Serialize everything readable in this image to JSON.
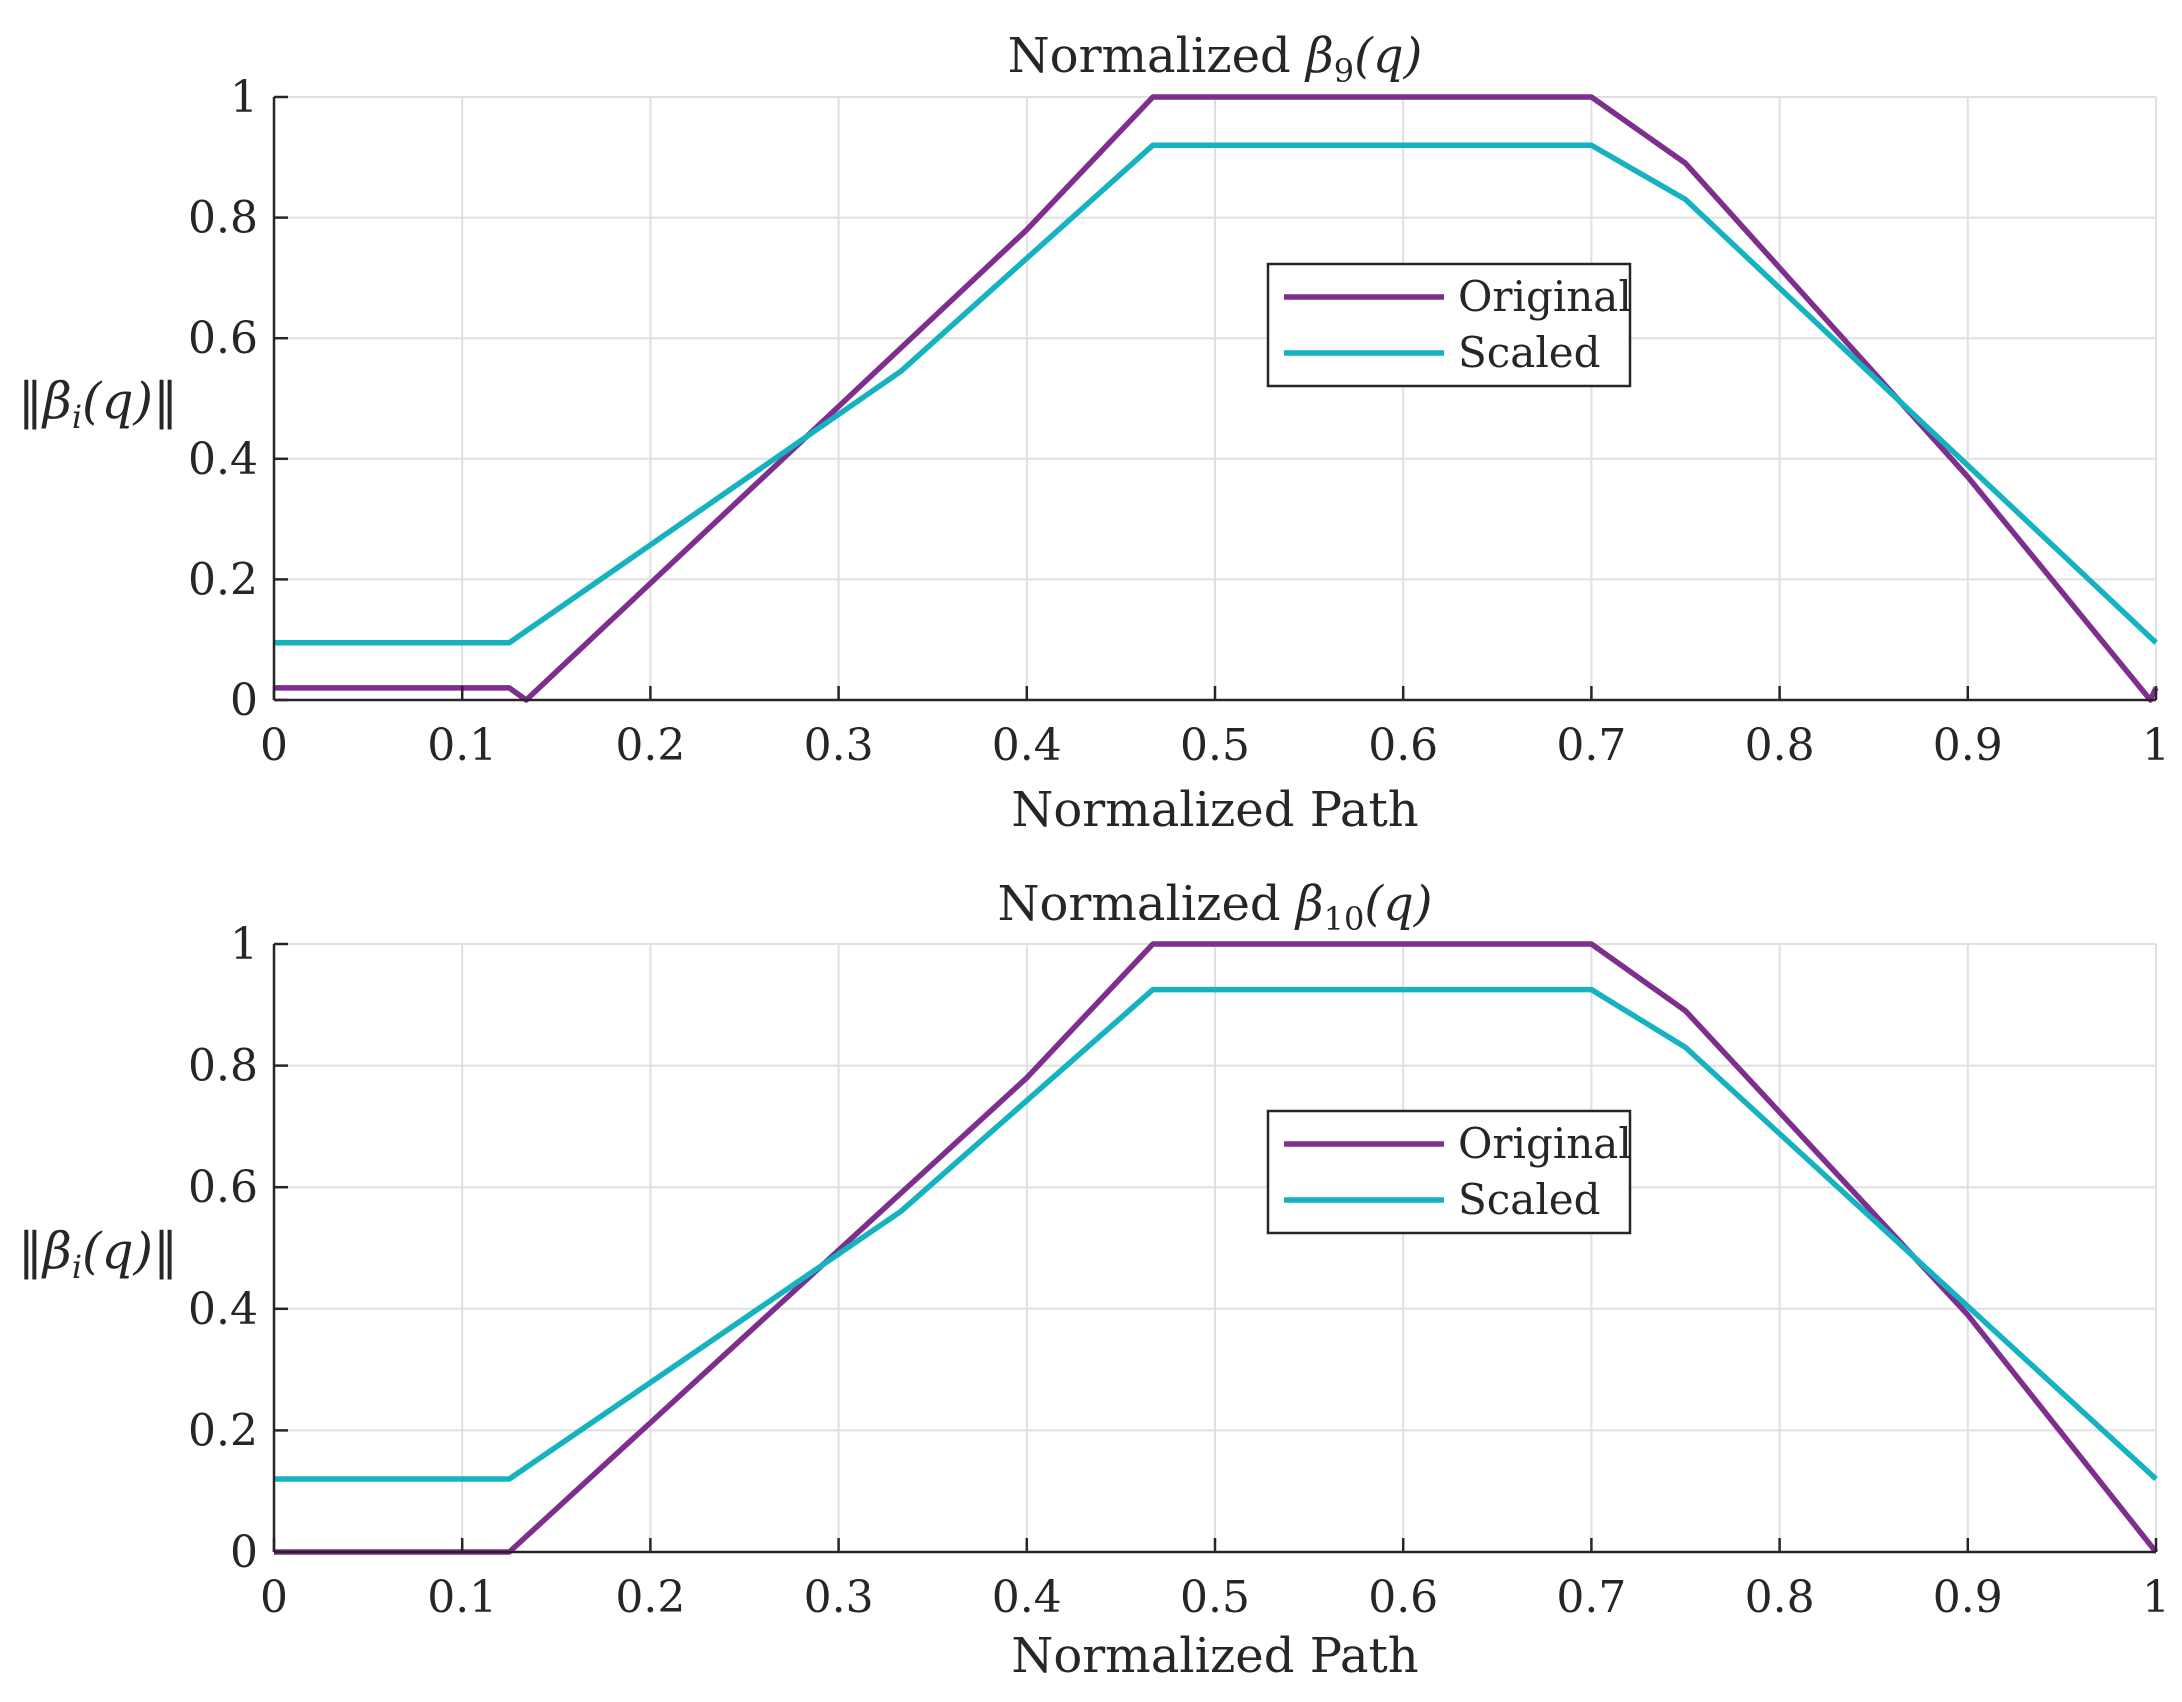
{
  "chart_data": [
    {
      "type": "line",
      "title": "Normalized β9(q)",
      "title_base": "Normalized ",
      "title_symbol": "β",
      "title_sub": "9",
      "title_arg": "(q)",
      "xlabel": "Normalized Path",
      "ylabel": "‖βi(q)‖",
      "ylabel_pre": "‖β",
      "ylabel_sub": "i",
      "ylabel_post": "(q)‖",
      "xlim": [
        0,
        1
      ],
      "ylim": [
        0,
        1
      ],
      "xticks": [
        "0",
        "0.1",
        "0.2",
        "0.3",
        "0.4",
        "0.5",
        "0.6",
        "0.7",
        "0.8",
        "0.9",
        "1"
      ],
      "yticks": [
        "0",
        "0.2",
        "0.4",
        "0.6",
        "0.8",
        "1"
      ],
      "grid": true,
      "legend_position": "upper-middle",
      "series": [
        {
          "name": "Original",
          "color": "#7e2f8e",
          "x": [
            0,
            0.125,
            0.134,
            0.4,
            0.467,
            0.7,
            0.75,
            0.9,
            0.997,
            1
          ],
          "y": [
            0.02,
            0.02,
            0.0,
            0.78,
            1.0,
            1.0,
            0.89,
            0.37,
            0.0,
            0.02
          ]
        },
        {
          "name": "Scaled",
          "color": "#15b2c0",
          "x": [
            0,
            0.125,
            0.333,
            0.467,
            0.7,
            0.75,
            1
          ],
          "y": [
            0.095,
            0.095,
            0.545,
            0.92,
            0.92,
            0.83,
            0.095
          ]
        }
      ]
    },
    {
      "type": "line",
      "title": "Normalized β10(q)",
      "title_base": "Normalized ",
      "title_symbol": "β",
      "title_sub": "10",
      "title_arg": "(q)",
      "xlabel": "Normalized Path",
      "ylabel": "‖βi(q)‖",
      "ylabel_pre": "‖β",
      "ylabel_sub": "i",
      "ylabel_post": "(q)‖",
      "xlim": [
        0,
        1
      ],
      "ylim": [
        0,
        1
      ],
      "xticks": [
        "0",
        "0.1",
        "0.2",
        "0.3",
        "0.4",
        "0.5",
        "0.6",
        "0.7",
        "0.8",
        "0.9",
        "1"
      ],
      "yticks": [
        "0",
        "0.2",
        "0.4",
        "0.6",
        "0.8",
        "1"
      ],
      "grid": true,
      "legend_position": "upper-middle",
      "series": [
        {
          "name": "Original",
          "color": "#7e2f8e",
          "x": [
            0,
            0.125,
            0.4,
            0.467,
            0.7,
            0.75,
            0.9,
            1
          ],
          "y": [
            0.0,
            0.0,
            0.78,
            1.0,
            1.0,
            0.89,
            0.39,
            0.0
          ]
        },
        {
          "name": "Scaled",
          "color": "#15b2c0",
          "x": [
            0,
            0.125,
            0.333,
            0.467,
            0.7,
            0.75,
            1
          ],
          "y": [
            0.12,
            0.12,
            0.56,
            0.925,
            0.925,
            0.83,
            0.12
          ]
        }
      ]
    }
  ]
}
